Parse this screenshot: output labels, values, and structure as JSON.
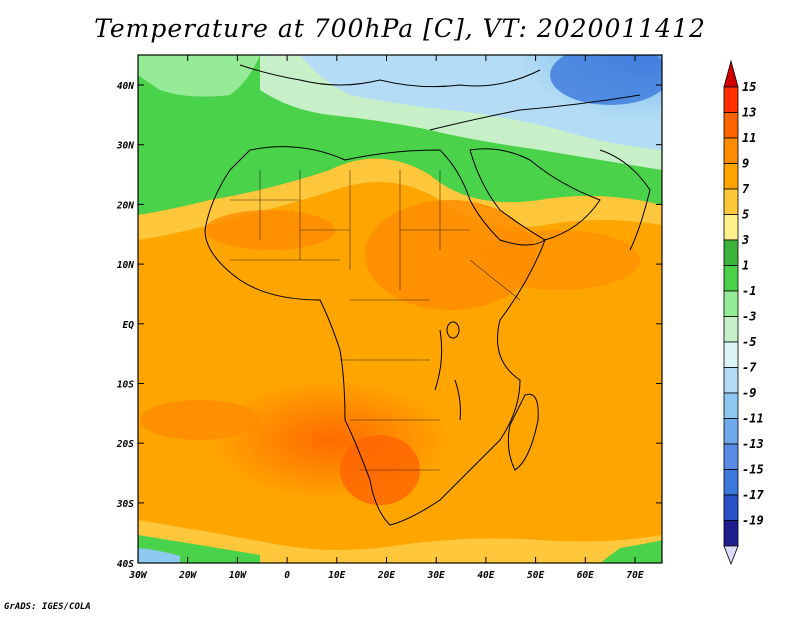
{
  "title": "Temperature at 700hPa [C], VT: 2020011412",
  "credit": "GrADS: IGES/COLA",
  "map": {
    "lon_ticks": [
      "30W",
      "20W",
      "10W",
      "0",
      "10E",
      "20E",
      "30E",
      "40E",
      "50E",
      "60E",
      "70E"
    ],
    "lat_ticks": [
      "40N",
      "30N",
      "20N",
      "10N",
      "EQ",
      "10S",
      "20S",
      "30S",
      "40S"
    ]
  },
  "colorbar": {
    "levels": [
      "15",
      "13",
      "11",
      "9",
      "7",
      "5",
      "3",
      "1",
      "-1",
      "-3",
      "-5",
      "-7",
      "-9",
      "-11",
      "-13",
      "-15",
      "-17",
      "-19"
    ],
    "colors": [
      "#ff3200",
      "#ff6400",
      "#ff8c00",
      "#ffa500",
      "#ffc83c",
      "#fff08c",
      "#3cb43c",
      "#4bd24b",
      "#96eb96",
      "#c8f0c8",
      "#dcf5f5",
      "#b4dcf5",
      "#8cc8f0",
      "#6eaaeb",
      "#5a8ce6",
      "#3c78dc",
      "#2850c8",
      "#1e1e8c"
    ],
    "top_triangle_color": "#d20000",
    "bottom_triangle_color": "#dcdcff"
  }
}
